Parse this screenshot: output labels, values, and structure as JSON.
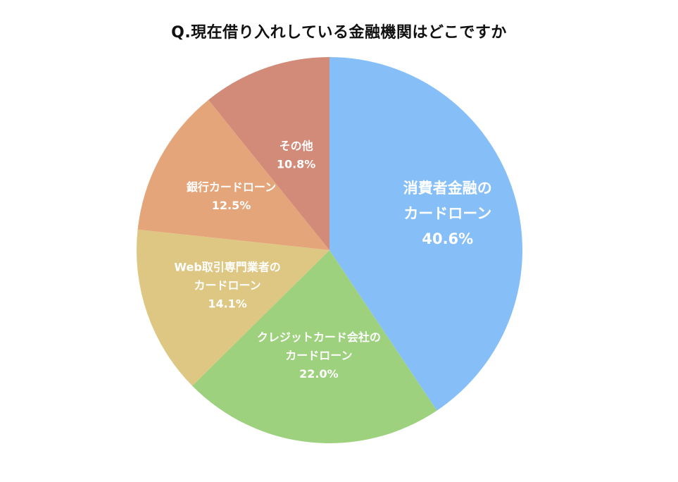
{
  "chart_data": {
    "type": "pie",
    "title": "Q.現在借り入れしている金融機関はどこですか",
    "slices": [
      {
        "label_lines": [
          "消費者金融の",
          "カードローン"
        ],
        "value": 40.6,
        "value_label": "40.6%",
        "color": "#86BFF8"
      },
      {
        "label_lines": [
          "クレジットカード会社の",
          "カードローン"
        ],
        "value": 22.0,
        "value_label": "22.0%",
        "color": "#9DD17E"
      },
      {
        "label_lines": [
          "Web取引専門業者の",
          "カードローン"
        ],
        "value": 14.1,
        "value_label": "14.1%",
        "color": "#DEC783"
      },
      {
        "label_lines": [
          "銀行カードローン"
        ],
        "value": 12.5,
        "value_label": "12.5%",
        "color": "#E5A57A"
      },
      {
        "label_lines": [
          "その他"
        ],
        "value": 10.8,
        "value_label": "10.8%",
        "color": "#D28B78"
      }
    ],
    "start": "12-o'clock",
    "direction": "clockwise",
    "legend": "none"
  }
}
